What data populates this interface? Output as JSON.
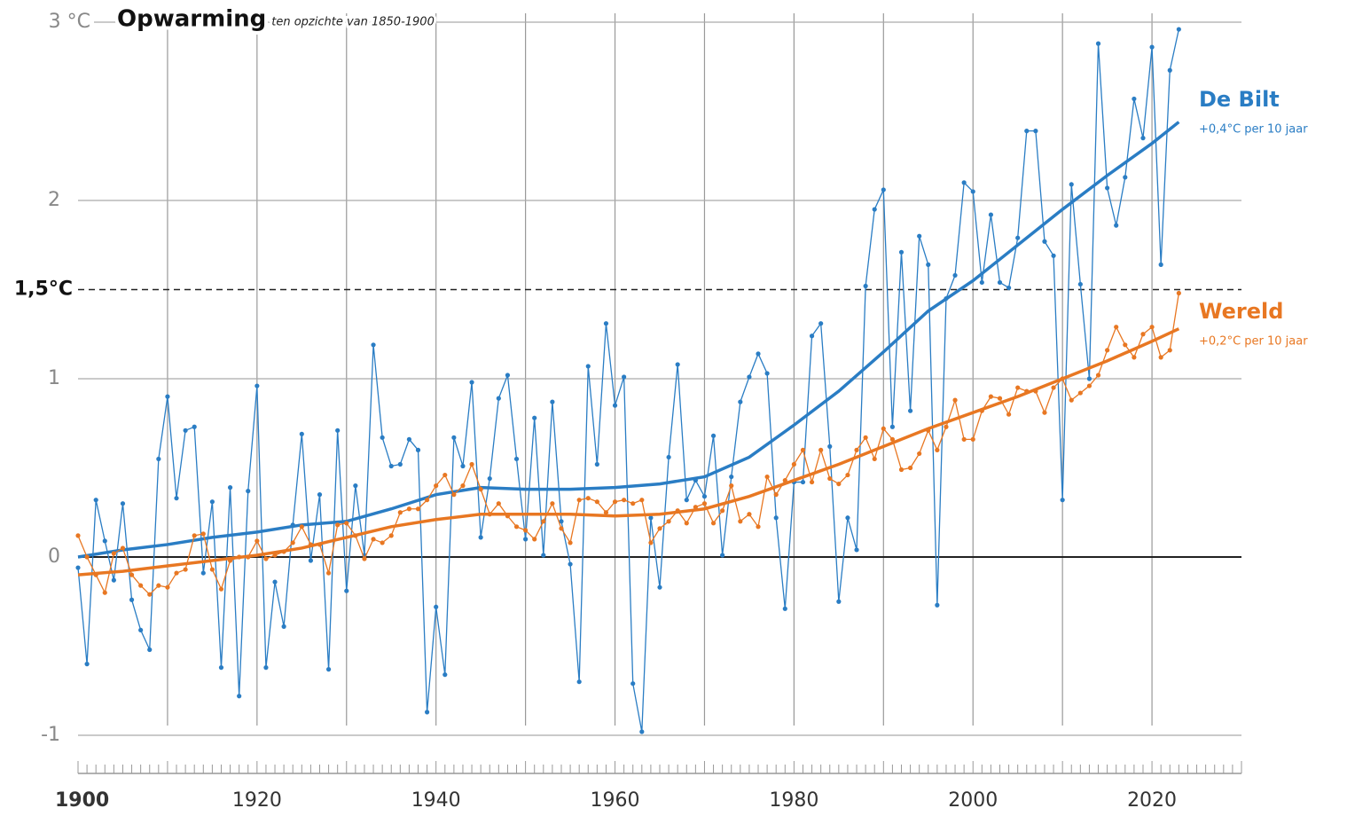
{
  "chart_data": {
    "type": "line",
    "title": "Opwarming",
    "subtitle": "ten opzichte van 1850-1900",
    "x": [
      1900,
      1901,
      1902,
      1903,
      1904,
      1905,
      1906,
      1907,
      1908,
      1909,
      1910,
      1911,
      1912,
      1913,
      1914,
      1915,
      1916,
      1917,
      1918,
      1919,
      1920,
      1921,
      1922,
      1923,
      1924,
      1925,
      1926,
      1927,
      1928,
      1929,
      1930,
      1931,
      1932,
      1933,
      1934,
      1935,
      1936,
      1937,
      1938,
      1939,
      1940,
      1941,
      1942,
      1943,
      1944,
      1945,
      1946,
      1947,
      1948,
      1949,
      1950,
      1951,
      1952,
      1953,
      1954,
      1955,
      1956,
      1957,
      1958,
      1959,
      1960,
      1961,
      1962,
      1963,
      1964,
      1965,
      1966,
      1967,
      1968,
      1969,
      1970,
      1971,
      1972,
      1973,
      1974,
      1975,
      1976,
      1977,
      1978,
      1979,
      1980,
      1981,
      1982,
      1983,
      1984,
      1985,
      1986,
      1987,
      1988,
      1989,
      1990,
      1991,
      1992,
      1993,
      1994,
      1995,
      1996,
      1997,
      1998,
      1999,
      2000,
      2001,
      2002,
      2003,
      2004,
      2005,
      2006,
      2007,
      2008,
      2009,
      2010,
      2011,
      2012,
      2013,
      2014,
      2015,
      2016,
      2017,
      2018,
      2019,
      2020,
      2021,
      2022,
      2023
    ],
    "series": [
      {
        "name": "De Bilt",
        "color": "#2a7dc4",
        "trend_label": "+0,4°C per 10 jaar",
        "values": [
          -0.06,
          -0.6,
          0.32,
          0.09,
          -0.13,
          0.3,
          -0.24,
          -0.41,
          -0.52,
          0.55,
          0.9,
          0.33,
          0.71,
          0.73,
          -0.09,
          0.31,
          -0.62,
          0.39,
          -0.78,
          0.37,
          0.96,
          -0.62,
          -0.14,
          -0.39,
          0.18,
          0.69,
          -0.02,
          0.35,
          -0.63,
          0.71,
          -0.19,
          0.4,
          0.01,
          1.19,
          0.67,
          0.51,
          0.52,
          0.66,
          0.6,
          -0.87,
          -0.28,
          -0.66,
          0.67,
          0.51,
          0.98,
          0.11,
          0.44,
          0.89,
          1.02,
          0.55,
          0.1,
          0.78,
          0.01,
          0.87,
          0.2,
          -0.04,
          -0.7,
          1.07,
          0.52,
          1.31,
          0.85,
          1.01,
          -0.71,
          -0.98,
          0.22,
          -0.17,
          0.56,
          1.08,
          0.32,
          0.43,
          0.34,
          0.68,
          0.01,
          0.45,
          0.87,
          1.01,
          1.14,
          1.03,
          0.22,
          -0.29,
          0.42,
          0.42,
          1.24,
          1.31,
          0.62,
          -0.25,
          0.22,
          0.04,
          1.52,
          1.95,
          2.06,
          0.73,
          1.71,
          0.82,
          1.8,
          1.64,
          -0.27,
          1.45,
          1.58,
          2.1,
          2.05,
          1.54,
          1.92,
          1.54,
          1.51,
          1.79,
          2.39,
          2.39,
          1.77,
          1.69,
          0.32,
          2.09,
          1.53,
          1.0,
          2.88,
          2.07,
          1.86,
          2.13,
          2.57,
          2.35,
          2.86,
          1.64,
          2.73,
          2.96
        ],
        "trend_x": [
          1900,
          1905,
          1910,
          1915,
          1920,
          1925,
          1930,
          1935,
          1940,
          1945,
          1950,
          1955,
          1960,
          1965,
          1970,
          1975,
          1980,
          1985,
          1990,
          1995,
          2000,
          2005,
          2010,
          2015,
          2020,
          2023
        ],
        "trend": [
          0.0,
          0.04,
          0.07,
          0.11,
          0.14,
          0.18,
          0.2,
          0.27,
          0.35,
          0.39,
          0.38,
          0.38,
          0.39,
          0.41,
          0.45,
          0.56,
          0.74,
          0.93,
          1.15,
          1.38,
          1.55,
          1.75,
          1.95,
          2.14,
          2.32,
          2.44
        ]
      },
      {
        "name": "Wereld",
        "color": "#e87722",
        "trend_label": "+0,2°C per 10 jaar",
        "values": [
          0.12,
          0.0,
          -0.1,
          -0.2,
          0.02,
          0.05,
          -0.1,
          -0.16,
          -0.21,
          -0.16,
          -0.17,
          -0.09,
          -0.07,
          0.12,
          0.13,
          -0.07,
          -0.18,
          -0.02,
          0.0,
          0.0,
          0.09,
          -0.01,
          0.01,
          0.03,
          0.08,
          0.17,
          0.07,
          0.07,
          -0.09,
          0.18,
          0.19,
          0.12,
          -0.01,
          0.1,
          0.08,
          0.12,
          0.25,
          0.27,
          0.27,
          0.32,
          0.4,
          0.46,
          0.35,
          0.4,
          0.52,
          0.38,
          0.24,
          0.3,
          0.23,
          0.17,
          0.15,
          0.1,
          0.2,
          0.3,
          0.16,
          0.08,
          0.32,
          0.33,
          0.31,
          0.25,
          0.31,
          0.32,
          0.3,
          0.32,
          0.08,
          0.16,
          0.2,
          0.26,
          0.19,
          0.28,
          0.3,
          0.19,
          0.26,
          0.4,
          0.2,
          0.24,
          0.17,
          0.45,
          0.35,
          0.43,
          0.52,
          0.6,
          0.42,
          0.6,
          0.44,
          0.41,
          0.46,
          0.6,
          0.67,
          0.55,
          0.72,
          0.66,
          0.49,
          0.5,
          0.58,
          0.71,
          0.6,
          0.73,
          0.88,
          0.66,
          0.66,
          0.82,
          0.9,
          0.89,
          0.8,
          0.95,
          0.93,
          0.93,
          0.81,
          0.95,
          1.0,
          0.88,
          0.92,
          0.96,
          1.02,
          1.16,
          1.29,
          1.19,
          1.12,
          1.25,
          1.29,
          1.12,
          1.16,
          1.48
        ],
        "trend_x": [
          1900,
          1905,
          1910,
          1915,
          1920,
          1925,
          1930,
          1935,
          1940,
          1945,
          1950,
          1955,
          1960,
          1965,
          1970,
          1975,
          1980,
          1985,
          1990,
          1995,
          2000,
          2005,
          2010,
          2015,
          2020,
          2023
        ],
        "trend": [
          -0.1,
          -0.08,
          -0.05,
          -0.02,
          0.01,
          0.05,
          0.11,
          0.17,
          0.21,
          0.24,
          0.24,
          0.24,
          0.23,
          0.24,
          0.27,
          0.34,
          0.43,
          0.52,
          0.62,
          0.72,
          0.81,
          0.9,
          1.0,
          1.1,
          1.21,
          1.28
        ]
      }
    ],
    "xlim": [
      1900,
      2030
    ],
    "xticks": [
      1900,
      1920,
      1940,
      1960,
      1980,
      2000,
      2020
    ],
    "xgrid": [
      1910,
      1920,
      1930,
      1940,
      1950,
      1960,
      1970,
      1980,
      1990,
      2000,
      2010,
      2020
    ],
    "ylim": [
      -1,
      3
    ],
    "yticks": [
      -1,
      0,
      1,
      2,
      {
        "value": 3,
        "label": "3 °C"
      }
    ],
    "reference_line": {
      "value": 1.5,
      "label": "1,5°C"
    },
    "grid": true
  }
}
